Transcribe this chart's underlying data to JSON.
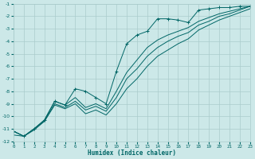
{
  "xlabel": "Humidex (Indice chaleur)",
  "bg_color": "#cce8e8",
  "grid_color": "#aacccc",
  "line_color": "#006666",
  "xlim": [
    0,
    23
  ],
  "ylim": [
    -12,
    -1
  ],
  "xticks": [
    0,
    1,
    2,
    3,
    4,
    5,
    6,
    7,
    8,
    9,
    10,
    11,
    12,
    13,
    14,
    15,
    16,
    17,
    18,
    19,
    20,
    21,
    22,
    23
  ],
  "yticks": [
    -1,
    -2,
    -3,
    -4,
    -5,
    -6,
    -7,
    -8,
    -9,
    -10,
    -11,
    -12
  ],
  "lines": [
    {
      "x": [
        0,
        1,
        2,
        3,
        4,
        5,
        6,
        7,
        8,
        9,
        10,
        11,
        12,
        13,
        14,
        15,
        16,
        17,
        18,
        19,
        20,
        21,
        22,
        23
      ],
      "y": [
        -11.2,
        -11.6,
        -11.0,
        -10.3,
        -8.8,
        -9.1,
        -7.8,
        -8.0,
        -8.5,
        -9.0,
        -6.4,
        -4.2,
        -3.5,
        -3.2,
        -2.2,
        -2.2,
        -2.3,
        -2.5,
        -1.5,
        -1.4,
        -1.3,
        -1.3,
        -1.2,
        -1.2
      ],
      "marker": true
    },
    {
      "x": [
        0,
        1,
        2,
        3,
        4,
        5,
        6,
        7,
        8,
        9,
        10,
        11,
        12,
        13,
        14,
        15,
        16,
        17,
        18,
        19,
        20,
        21,
        22,
        23
      ],
      "y": [
        -11.2,
        -11.6,
        -11.0,
        -10.3,
        -8.8,
        -9.1,
        -8.5,
        -9.3,
        -9.0,
        -9.4,
        -8.0,
        -6.5,
        -5.5,
        -4.5,
        -3.9,
        -3.5,
        -3.2,
        -2.9,
        -2.4,
        -2.1,
        -1.8,
        -1.6,
        -1.4,
        -1.2
      ],
      "marker": false
    },
    {
      "x": [
        0,
        1,
        2,
        3,
        4,
        5,
        6,
        7,
        8,
        9,
        10,
        11,
        12,
        13,
        14,
        15,
        16,
        17,
        18,
        19,
        20,
        21,
        22,
        23
      ],
      "y": [
        -11.5,
        -11.6,
        -11.0,
        -10.4,
        -9.0,
        -9.3,
        -8.8,
        -9.5,
        -9.2,
        -9.6,
        -8.5,
        -7.0,
        -6.2,
        -5.2,
        -4.5,
        -4.0,
        -3.6,
        -3.3,
        -2.7,
        -2.4,
        -2.0,
        -1.8,
        -1.5,
        -1.2
      ],
      "marker": false
    },
    {
      "x": [
        0,
        1,
        2,
        3,
        4,
        5,
        6,
        7,
        8,
        9,
        10,
        11,
        12,
        13,
        14,
        15,
        16,
        17,
        18,
        19,
        20,
        21,
        22,
        23
      ],
      "y": [
        -11.2,
        -11.6,
        -11.1,
        -10.4,
        -9.1,
        -9.4,
        -9.0,
        -9.8,
        -9.5,
        -9.9,
        -9.0,
        -7.8,
        -7.0,
        -6.0,
        -5.2,
        -4.7,
        -4.2,
        -3.8,
        -3.1,
        -2.7,
        -2.3,
        -2.0,
        -1.7,
        -1.4
      ],
      "marker": false
    }
  ]
}
